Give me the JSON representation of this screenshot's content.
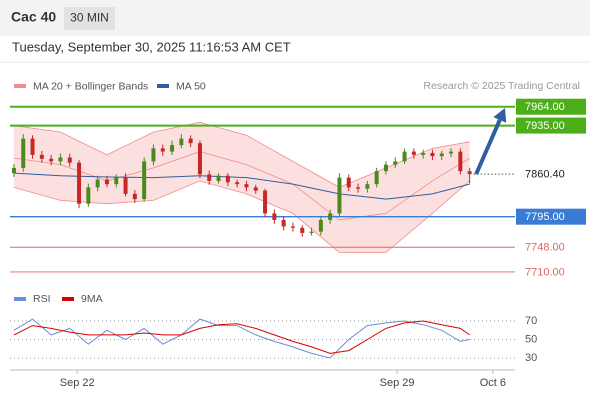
{
  "header": {
    "title": "Cac 40",
    "interval": "30 MIN",
    "datetime": "Tuesday, September 30, 2025 11:16:53 AM CET"
  },
  "chart_data": {
    "type": "candlestick",
    "legend": [
      {
        "name": "MA 20 + Bollinger Bands",
        "color": "#f28b8b"
      },
      {
        "name": "MA 50",
        "color": "#2f5f9e"
      }
    ],
    "credit": "Research © 2025 Trading Central",
    "xlim": [
      -0.5,
      54.5
    ],
    "xticks": [
      {
        "value": 6.8,
        "label": "Sep 22"
      },
      {
        "value": 41.2,
        "label": "Sep 29"
      },
      {
        "value": 51.5,
        "label": "Oct 6"
      }
    ],
    "ylim": [
      7690,
      7982
    ],
    "up_color": "#4a8a1c",
    "down_color": "#c62828",
    "open": [
      7862,
      7870,
      7915,
      7890,
      7884,
      7880,
      7886,
      7878,
      7815,
      7840,
      7852,
      7845,
      7855,
      7830,
      7822,
      7880,
      7900,
      7895,
      7905,
      7915,
      7908,
      7860,
      7850,
      7858,
      7848,
      7845,
      7840,
      7835,
      7800,
      7790,
      7780,
      7778,
      7770,
      7772,
      7790,
      7800,
      7855,
      7840,
      7838,
      7845,
      7865,
      7875,
      7880,
      7895,
      7890,
      7893,
      7888,
      7892,
      7895,
      7865
    ],
    "high": [
      7876,
      7922,
      7920,
      7896,
      7890,
      7892,
      7892,
      7882,
      7846,
      7858,
      7858,
      7860,
      7862,
      7836,
      7886,
      7906,
      7906,
      7912,
      7922,
      7920,
      7912,
      7866,
      7862,
      7862,
      7852,
      7850,
      7844,
      7838,
      7806,
      7796,
      7786,
      7782,
      7778,
      7794,
      7806,
      7862,
      7860,
      7846,
      7850,
      7870,
      7880,
      7886,
      7900,
      7900,
      7898,
      7898,
      7896,
      7900,
      7900,
      7870
    ],
    "low": [
      7856,
      7864,
      7884,
      7878,
      7874,
      7874,
      7872,
      7808,
      7810,
      7834,
      7840,
      7840,
      7826,
      7816,
      7818,
      7874,
      7888,
      7890,
      7900,
      7902,
      7854,
      7844,
      7846,
      7842,
      7840,
      7834,
      7830,
      7794,
      7784,
      7774,
      7772,
      7764,
      7766,
      7766,
      7784,
      7794,
      7834,
      7832,
      7832,
      7840,
      7860,
      7870,
      7876,
      7884,
      7884,
      7882,
      7882,
      7886,
      7860,
      7846
    ],
    "close": [
      7870,
      7915,
      7890,
      7884,
      7880,
      7886,
      7878,
      7815,
      7840,
      7852,
      7845,
      7855,
      7830,
      7822,
      7880,
      7900,
      7895,
      7905,
      7915,
      7908,
      7860,
      7850,
      7858,
      7848,
      7845,
      7840,
      7835,
      7800,
      7790,
      7780,
      7778,
      7770,
      7772,
      7790,
      7800,
      7855,
      7840,
      7838,
      7845,
      7865,
      7875,
      7880,
      7895,
      7890,
      7893,
      7888,
      7892,
      7895,
      7865,
      7860.4
    ],
    "line_x": [
      0,
      5,
      10,
      15,
      20,
      25,
      30,
      35,
      40,
      45,
      49
    ],
    "ma20": [
      7885,
      7875,
      7850,
      7870,
      7895,
      7875,
      7845,
      7790,
      7800,
      7850,
      7885
    ],
    "ma50": [
      7862,
      7858,
      7856,
      7855,
      7858,
      7855,
      7845,
      7830,
      7822,
      7830,
      7845
    ],
    "bollinger_upper": [
      7935,
      7925,
      7890,
      7925,
      7940,
      7920,
      7880,
      7840,
      7870,
      7900,
      7910
    ],
    "bollinger_lower": [
      7840,
      7820,
      7815,
      7820,
      7850,
      7830,
      7800,
      7740,
      7740,
      7800,
      7850
    ],
    "levels": [
      {
        "value": 7964,
        "label": "7964.00",
        "color": "#4caf1a",
        "style": "box"
      },
      {
        "value": 7935,
        "label": "7935.00",
        "color": "#4caf1a",
        "style": "box"
      },
      {
        "value": 7860.4,
        "label": "7860.40",
        "color": "#333333",
        "style": "current"
      },
      {
        "value": 7795,
        "label": "7795.00",
        "color": "#3a7bd5",
        "style": "box"
      },
      {
        "value": 7748,
        "label": "7748.00",
        "color": "#e06666",
        "style": "text"
      },
      {
        "value": 7710,
        "label": "7710.00",
        "color": "#e06666",
        "style": "text"
      }
    ],
    "arrow": {
      "from": [
        49.7,
        7860.4
      ],
      "to": [
        52.8,
        7962
      ],
      "color": "#2f5f9e"
    },
    "rsi": {
      "legend": [
        {
          "name": "RSI",
          "color": "#6b8fd6"
        },
        {
          "name": "9MA",
          "color": "#d80000"
        }
      ],
      "ylim": [
        10,
        90
      ],
      "yticks": [
        30,
        50,
        70
      ],
      "x": [
        0,
        2,
        4,
        6,
        8,
        10,
        12,
        14,
        16,
        18,
        20,
        22,
        24,
        26,
        28,
        30,
        32,
        34,
        36,
        38,
        40,
        42,
        44,
        46,
        48,
        49
      ],
      "rsi": [
        60,
        72,
        55,
        62,
        45,
        60,
        50,
        62,
        45,
        55,
        72,
        65,
        65,
        55,
        48,
        42,
        35,
        30,
        50,
        65,
        68,
        70,
        66,
        60,
        48,
        50
      ],
      "ma9": [
        55,
        65,
        62,
        58,
        55,
        55,
        55,
        57,
        55,
        55,
        62,
        66,
        67,
        62,
        55,
        48,
        42,
        35,
        38,
        50,
        62,
        68,
        70,
        66,
        62,
        55
      ]
    }
  }
}
